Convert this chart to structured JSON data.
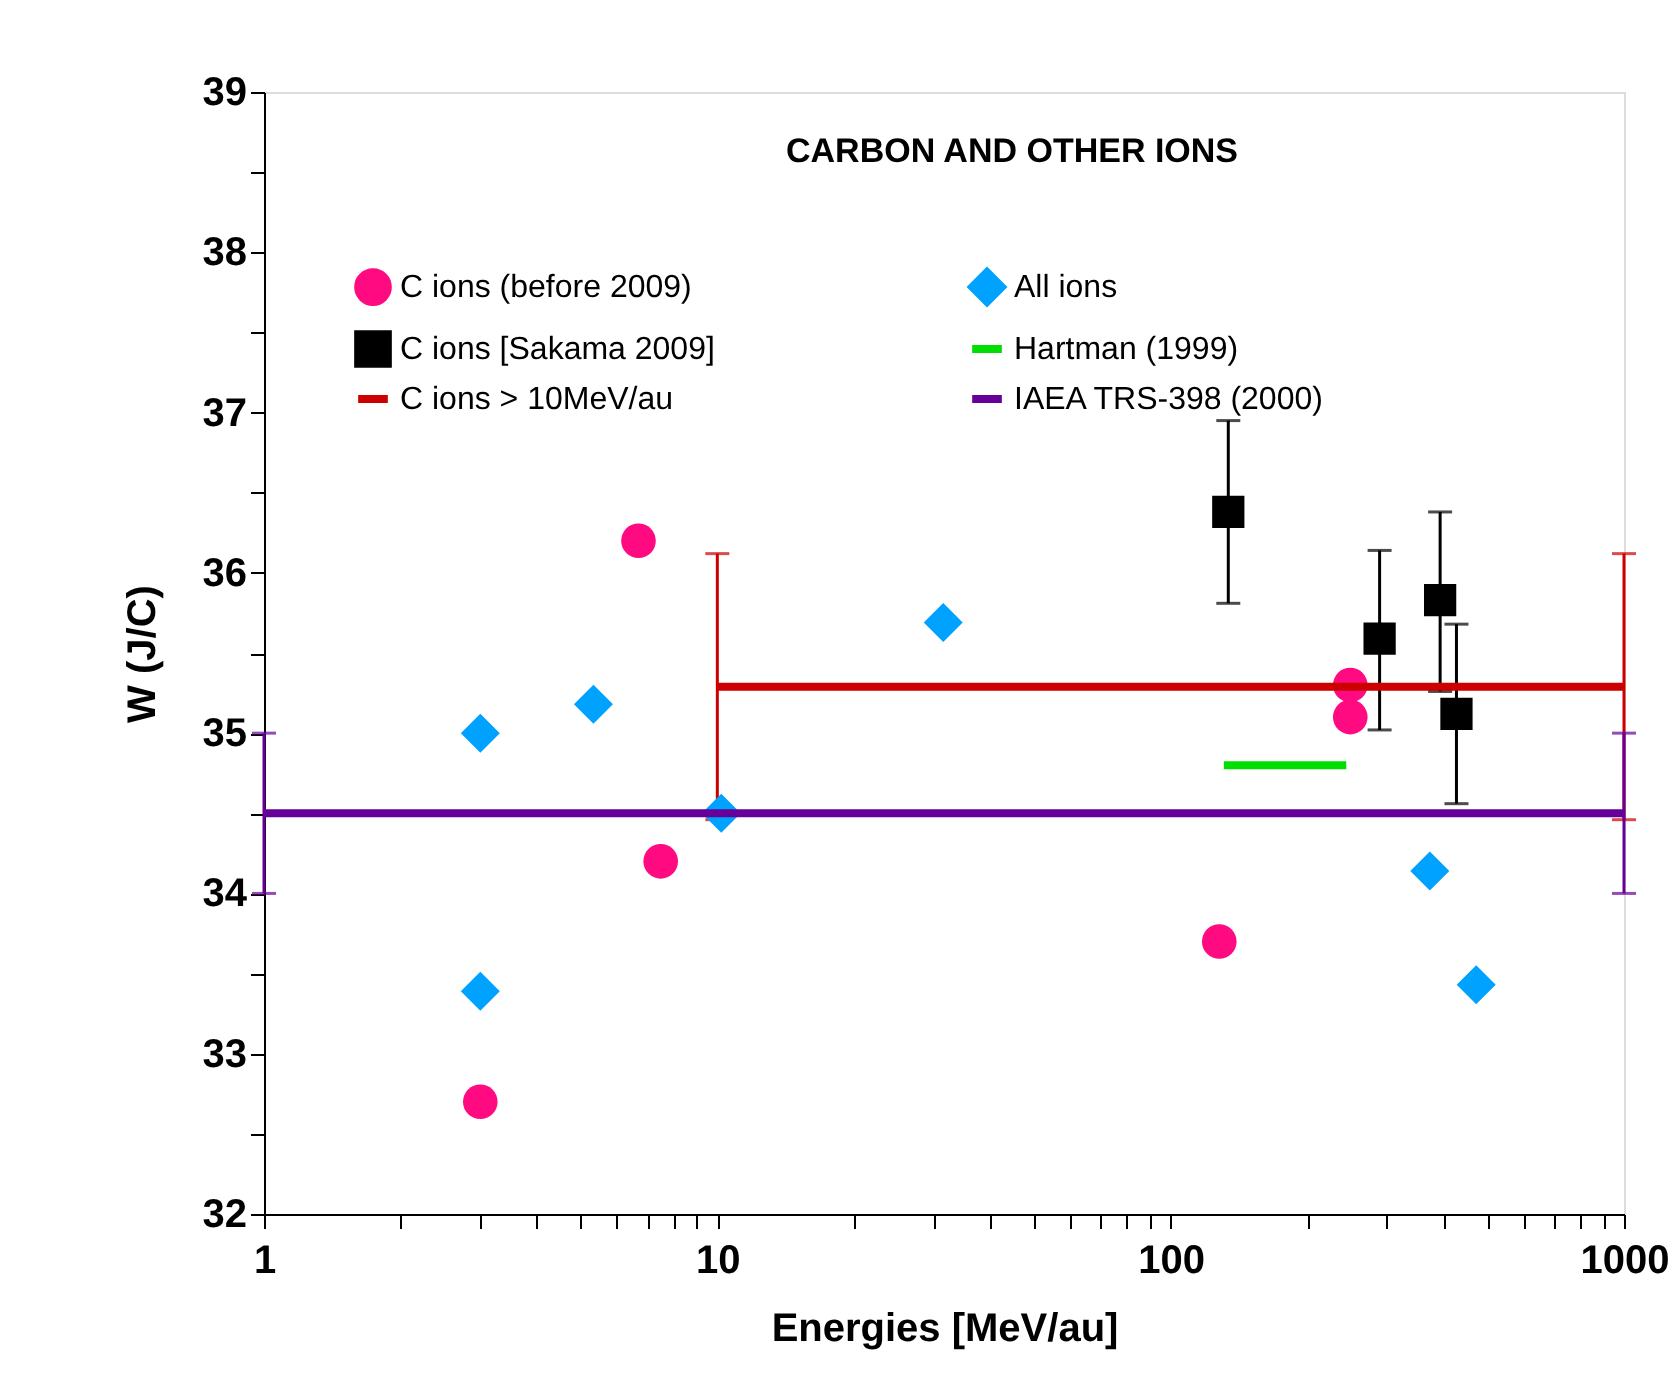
{
  "chart_data": {
    "type": "scatter",
    "title": "CARBON AND OTHER IONS",
    "xlabel": "Energies [MeV/au]",
    "ylabel": "W (J/C)",
    "log": "x",
    "xlim": [
      1,
      1000
    ],
    "ylim": [
      32,
      39
    ],
    "xticks": [
      1,
      {
        "value": 2,
        "label": null
      },
      {
        "value": 3,
        "label": null
      },
      {
        "value": 4,
        "label": null
      },
      {
        "value": 5,
        "label": null
      },
      {
        "value": 6,
        "label": null
      },
      {
        "value": 7,
        "label": null
      },
      {
        "value": 8,
        "label": null
      },
      {
        "value": 9,
        "label": null
      },
      10,
      {
        "value": 20,
        "label": null
      },
      {
        "value": 30,
        "label": null
      },
      {
        "value": 40,
        "label": null
      },
      {
        "value": 50,
        "label": null
      },
      {
        "value": 60,
        "label": null
      },
      {
        "value": 70,
        "label": null
      },
      {
        "value": 80,
        "label": null
      },
      {
        "value": 90,
        "label": null
      },
      100,
      {
        "value": 200,
        "label": null
      },
      {
        "value": 300,
        "label": null
      },
      {
        "value": 400,
        "label": null
      },
      {
        "value": 500,
        "label": null
      },
      {
        "value": 600,
        "label": null
      },
      {
        "value": 700,
        "label": null
      },
      {
        "value": 800,
        "label": null
      },
      {
        "value": 900,
        "label": null
      },
      1000
    ],
    "yticks": [
      32,
      {
        "value": 32.5,
        "label": null
      },
      33,
      {
        "value": 33.5,
        "label": null
      },
      34,
      {
        "value": 34.5,
        "label": null
      },
      35,
      {
        "value": 35.5,
        "label": null
      },
      36,
      {
        "value": 36.5,
        "label": null
      },
      37,
      {
        "value": 37.5,
        "label": null
      },
      38,
      {
        "value": 38.5,
        "label": null
      },
      39
    ],
    "grid": false,
    "legend": "top",
    "series": [
      {
        "name": "C ions (before 2009)",
        "marker": "circle",
        "color": "#ff0a80",
        "x": [
          3,
          6.7,
          7.5,
          128,
          249,
          249
        ],
        "values": [
          32.7,
          36.2,
          34.2,
          33.7,
          35.3,
          35.1
        ]
      },
      {
        "name": "C ions [Sakama 2009]",
        "marker": "square",
        "color": "#000000",
        "x": [
          134,
          289,
          393,
          427
        ],
        "values": [
          36.38,
          35.59,
          35.83,
          35.12
        ],
        "errors": [
          [
            35.81,
            36.95
          ],
          [
            35.02,
            36.14
          ],
          [
            35.26,
            36.38
          ],
          [
            34.56,
            35.68
          ]
        ]
      },
      {
        "name": "C ions > 10MeV/au",
        "type": "line",
        "color": "#cc0000",
        "x": [
          10,
          1000
        ],
        "values": [
          35.29,
          35.29
        ],
        "errors": [
          0.83,
          0.83
        ]
      },
      {
        "name": "All ions",
        "marker": "diamond",
        "color": "#00a2ff",
        "x": [
          3,
          3,
          5.33,
          10.2,
          31.5,
          373,
          472
        ],
        "values": [
          35.0,
          33.39,
          35.18,
          34.5,
          35.69,
          34.14,
          33.43
        ]
      },
      {
        "name": "Hartman (1999)",
        "type": "line",
        "color": "#00dd00",
        "x": [
          131,
          244
        ],
        "values": [
          34.8,
          34.8
        ]
      },
      {
        "name": "IAEA TRS-398 (2000)",
        "type": "line",
        "color": "#660099",
        "x": [
          1,
          1000
        ],
        "values": [
          34.5,
          34.5
        ],
        "errors": [
          0.5,
          0.5
        ]
      }
    ]
  }
}
